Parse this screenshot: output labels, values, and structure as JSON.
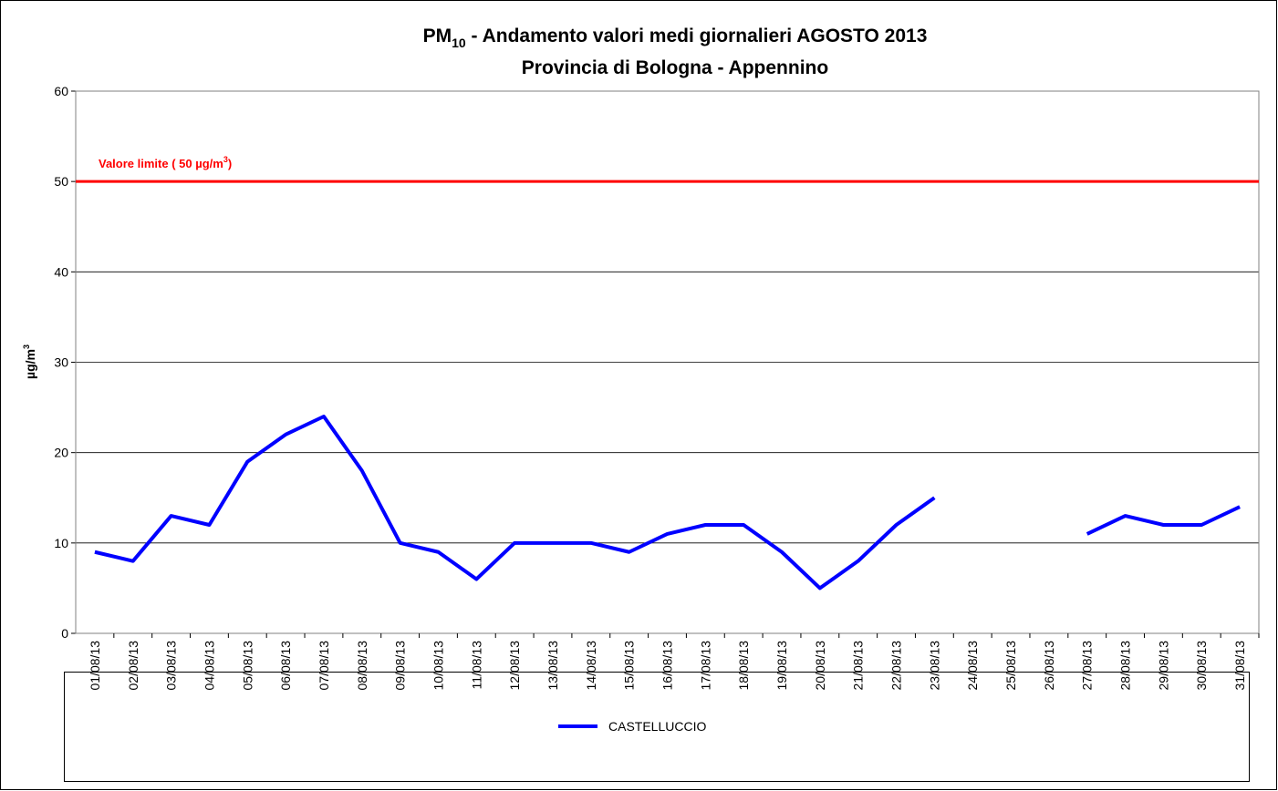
{
  "chart_data": {
    "type": "line",
    "title": {
      "main": "PM",
      "sub": "10",
      "rest": " - Andamento valori medi giornalieri AGOSTO 2013"
    },
    "subtitle": "Provincia di Bologna - Appennino",
    "y_label": {
      "main": "µg/m",
      "sup": "3"
    },
    "categories": [
      "01/08/13",
      "02/08/13",
      "03/08/13",
      "04/08/13",
      "05/08/13",
      "06/08/13",
      "07/08/13",
      "08/08/13",
      "09/08/13",
      "10/08/13",
      "11/08/13",
      "12/08/13",
      "13/08/13",
      "14/08/13",
      "15/08/13",
      "16/08/13",
      "17/08/13",
      "18/08/13",
      "19/08/13",
      "20/08/13",
      "21/08/13",
      "22/08/13",
      "23/08/13",
      "24/08/13",
      "25/08/13",
      "26/08/13",
      "27/08/13",
      "28/08/13",
      "29/08/13",
      "30/08/13",
      "31/08/13"
    ],
    "series": [
      {
        "name": "CASTELLUCCIO",
        "color": "#0000ff",
        "values": [
          9,
          8,
          13,
          12,
          19,
          22,
          24,
          18,
          10,
          9,
          6,
          10,
          10,
          10,
          9,
          11,
          12,
          12,
          9,
          5,
          8,
          12,
          15,
          null,
          null,
          null,
          11,
          13,
          12,
          12,
          14
        ]
      }
    ],
    "limit": {
      "value": 50,
      "color": "#ff0000",
      "label": {
        "main": "Valore limite  ( 50 µg/m",
        "sup": "3",
        "end": ")"
      }
    },
    "ylim": [
      0,
      60
    ],
    "yticks": [
      0,
      10,
      20,
      30,
      40,
      50,
      60
    ],
    "grid": true
  }
}
